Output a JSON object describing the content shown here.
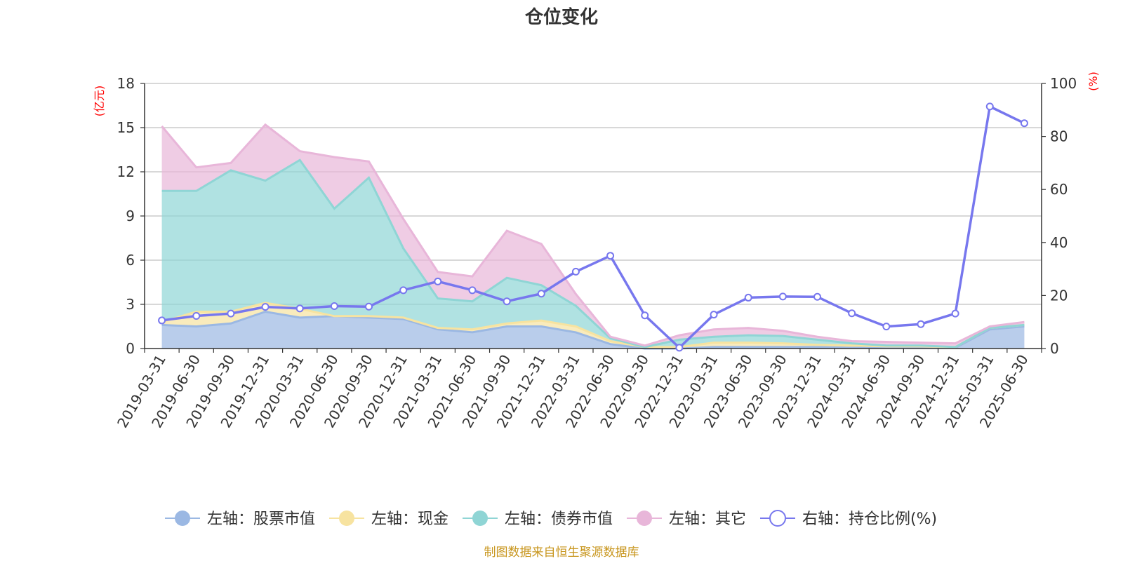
{
  "chart_data": {
    "type": "area",
    "title": "仓位变化",
    "source": "制图数据来自恒生聚源数据库",
    "left_axis": {
      "unit": "(亿元)",
      "min": 0,
      "max": 18,
      "ticks": [
        0,
        3,
        6,
        9,
        12,
        15,
        18
      ]
    },
    "right_axis": {
      "unit": "(%)",
      "min": 0,
      "max": 100,
      "ticks": [
        0,
        20,
        40,
        60,
        80,
        100
      ]
    },
    "categories": [
      "2019-03-31",
      "2019-06-30",
      "2019-09-30",
      "2019-12-31",
      "2020-03-31",
      "2020-06-30",
      "2020-09-30",
      "2020-12-31",
      "2021-03-31",
      "2021-06-30",
      "2021-09-30",
      "2021-12-31",
      "2022-03-31",
      "2022-06-30",
      "2022-09-30",
      "2022-12-31",
      "2023-03-31",
      "2023-06-30",
      "2023-09-30",
      "2023-12-31",
      "2024-03-31",
      "2024-06-30",
      "2024-09-30",
      "2024-12-31",
      "2025-03-31",
      "2025-06-30"
    ],
    "stacked_series": [
      {
        "name": "左轴：股票市值",
        "axis": "left",
        "color": "#9bb8e3",
        "values": [
          1.6,
          1.5,
          1.7,
          2.5,
          2.1,
          2.2,
          2.1,
          2.0,
          1.3,
          1.1,
          1.5,
          1.5,
          1.1,
          0.3,
          0.0,
          0.0,
          0.1,
          0.1,
          0.1,
          0.1,
          0.05,
          0.05,
          0.05,
          0.05,
          1.3,
          1.5
        ]
      },
      {
        "name": "左轴：现金",
        "axis": "left",
        "color": "#f7e3a0",
        "values": [
          0.2,
          1.0,
          0.8,
          0.6,
          0.6,
          0.0,
          0.1,
          0.1,
          0.1,
          0.2,
          0.2,
          0.4,
          0.4,
          0.2,
          0.1,
          0.1,
          0.3,
          0.3,
          0.25,
          0.15,
          0.15,
          0.1,
          0.1,
          0.05,
          0.1,
          0.1
        ]
      },
      {
        "name": "左轴：债券市值",
        "axis": "left",
        "color": "#8fd5d5",
        "values": [
          8.9,
          8.2,
          9.6,
          8.3,
          10.1,
          7.3,
          9.4,
          4.7,
          2.0,
          1.9,
          3.1,
          2.4,
          1.4,
          0.2,
          0.0,
          0.5,
          0.4,
          0.5,
          0.5,
          0.35,
          0.15,
          0.05,
          0.05,
          0.0,
          0.0,
          0.0
        ]
      },
      {
        "name": "左轴：其它",
        "axis": "left",
        "color": "#e8b6d9",
        "values": [
          4.4,
          1.6,
          0.5,
          3.8,
          0.6,
          3.5,
          1.1,
          2.0,
          1.8,
          1.7,
          3.2,
          2.8,
          0.8,
          0.1,
          0.1,
          0.3,
          0.5,
          0.5,
          0.35,
          0.2,
          0.15,
          0.25,
          0.2,
          0.25,
          0.1,
          0.2
        ]
      }
    ],
    "line_series": {
      "name": "右轴：持仓比例(%)",
      "axis": "right",
      "color": "#7777ee",
      "values": [
        10.6,
        12.3,
        13.2,
        15.7,
        15.1,
        16.0,
        15.8,
        22.0,
        25.3,
        22.0,
        17.8,
        20.7,
        29.0,
        35.0,
        12.5,
        0.3,
        12.8,
        19.2,
        19.6,
        19.5,
        13.3,
        8.3,
        9.2,
        13.2,
        91.3,
        85.0
      ]
    },
    "legend_position": "bottom",
    "grid": true
  }
}
